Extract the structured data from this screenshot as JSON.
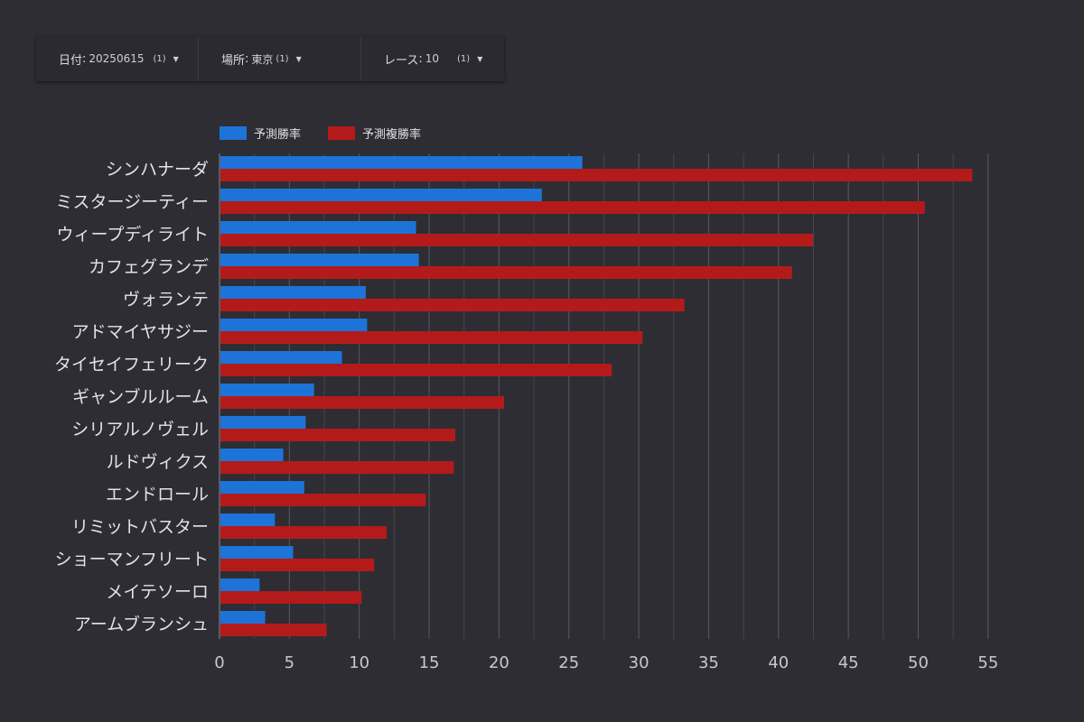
{
  "filters": [
    {
      "label": "日付",
      "value": "20250615",
      "count": "(1)"
    },
    {
      "label": "場所",
      "value": "東京",
      "count": "(1)"
    },
    {
      "label": "レース",
      "value": "10",
      "count": "(1)"
    }
  ],
  "chart_data": {
    "type": "bar",
    "orientation": "horizontal",
    "categories": [
      "シンハナーダ",
      "ミスタージーティー",
      "ウィープディライト",
      "カフェグランデ",
      "ヴォランテ",
      "アドマイヤサジー",
      "タイセイフェリーク",
      "ギャンブルルーム",
      "シリアルノヴェル",
      "ルドヴィクス",
      "エンドロール",
      "リミットバスター",
      "ショーマンフリート",
      "メイテソーロ",
      "アームブランシュ"
    ],
    "series": [
      {
        "name": "予測勝率",
        "color": "#1d73d8",
        "values": [
          25.9,
          23.0,
          14.0,
          14.2,
          10.4,
          10.5,
          8.7,
          6.7,
          6.1,
          4.5,
          6.0,
          3.9,
          5.2,
          2.8,
          3.2
        ]
      },
      {
        "name": "予測複勝率",
        "color": "#b31b1b",
        "values": [
          53.8,
          50.4,
          42.4,
          40.9,
          33.2,
          30.2,
          28.0,
          20.3,
          16.8,
          16.7,
          14.7,
          11.9,
          11.0,
          10.1,
          7.6
        ]
      }
    ],
    "xlim": [
      0,
      55
    ],
    "xticks": [
      0,
      5,
      10,
      15,
      20,
      25,
      30,
      35,
      40,
      45,
      50,
      55
    ],
    "grid": true,
    "legend_position": "top-left"
  }
}
